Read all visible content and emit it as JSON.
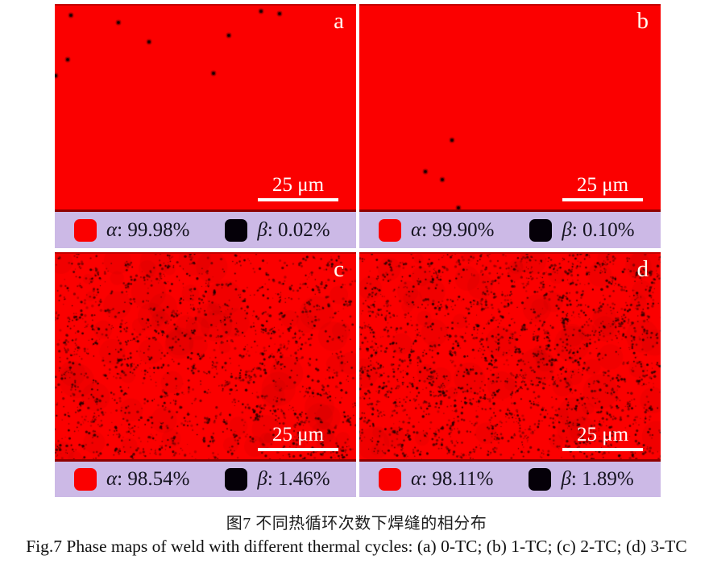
{
  "figure": {
    "colors": {
      "phase_red": "#fb0000",
      "phase_black": "#050008",
      "legend_bg": "#ccb9e6",
      "scalebar_white": "#ffffff"
    },
    "panels": [
      {
        "id": "a",
        "label": "a",
        "scale_bar": "25 μm",
        "legend": {
          "alpha_symbol": "α",
          "alpha_text": ": 99.98%",
          "beta_symbol": "β",
          "beta_text": ": 0.02%"
        },
        "dots": [
          [
            20,
            12
          ],
          [
            79,
            21
          ],
          [
            117,
            45
          ],
          [
            216,
            37
          ],
          [
            16,
            67
          ],
          [
            1,
            87
          ],
          [
            197,
            84
          ],
          [
            256,
            7
          ],
          [
            279,
            10
          ]
        ]
      },
      {
        "id": "b",
        "label": "b",
        "scale_bar": "25 μm",
        "legend": {
          "alpha_symbol": "α",
          "alpha_text": ": 99.90%",
          "beta_symbol": "β",
          "beta_text": ": 0.10%"
        },
        "dots": [
          [
            115,
            167
          ],
          [
            82,
            206
          ],
          [
            103,
            216
          ],
          [
            123,
            251
          ]
        ]
      },
      {
        "id": "c",
        "label": "c",
        "scale_bar": "25 μm",
        "legend": {
          "alpha_symbol": "α",
          "alpha_text": ": 98.54%",
          "beta_symbol": "β",
          "beta_text": ": 1.46%"
        },
        "speckle": {
          "seed": 7,
          "count": 1250
        }
      },
      {
        "id": "d",
        "label": "d",
        "scale_bar": "25 μm",
        "legend": {
          "alpha_symbol": "α",
          "alpha_text": ": 98.11%",
          "beta_symbol": "β",
          "beta_text": ": 1.89%"
        },
        "speckle": {
          "seed": 13,
          "count": 1600
        }
      }
    ]
  },
  "caption": {
    "zh": "图7 不同热循环次数下焊缝的相分布",
    "en": "Fig.7  Phase maps of weld with different thermal cycles: (a) 0-TC; (b) 1-TC; (c) 2-TC; (d) 3-TC"
  }
}
